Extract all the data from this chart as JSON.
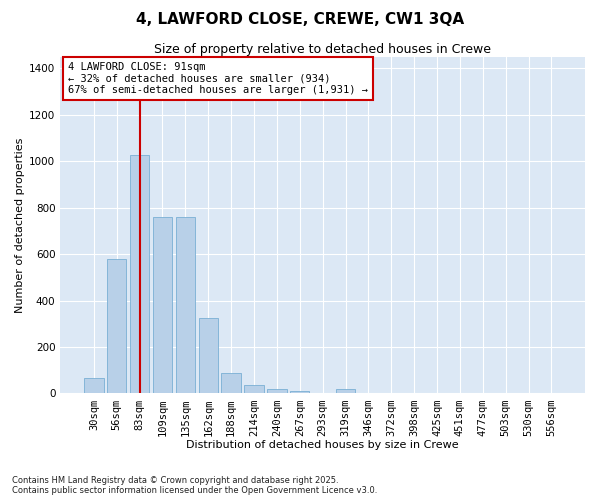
{
  "title": "4, LAWFORD CLOSE, CREWE, CW1 3QA",
  "subtitle": "Size of property relative to detached houses in Crewe",
  "xlabel": "Distribution of detached houses by size in Crewe",
  "ylabel": "Number of detached properties",
  "categories": [
    "30sqm",
    "56sqm",
    "83sqm",
    "109sqm",
    "135sqm",
    "162sqm",
    "188sqm",
    "214sqm",
    "240sqm",
    "267sqm",
    "293sqm",
    "319sqm",
    "346sqm",
    "372sqm",
    "398sqm",
    "425sqm",
    "451sqm",
    "477sqm",
    "503sqm",
    "530sqm",
    "556sqm"
  ],
  "values": [
    65,
    580,
    1025,
    760,
    760,
    325,
    90,
    35,
    20,
    12,
    0,
    18,
    0,
    0,
    0,
    0,
    0,
    0,
    0,
    0,
    0
  ],
  "bar_color": "#b8d0e8",
  "bar_edge_color": "#7aafd4",
  "red_line_index": 2,
  "annotation_text": "4 LAWFORD CLOSE: 91sqm\n← 32% of detached houses are smaller (934)\n67% of semi-detached houses are larger (1,931) →",
  "annotation_box_color": "#ffffff",
  "annotation_box_edge_color": "#cc0000",
  "red_line_color": "#cc0000",
  "ylim": [
    0,
    1450
  ],
  "yticks": [
    0,
    200,
    400,
    600,
    800,
    1000,
    1200,
    1400
  ],
  "background_color": "#dce8f5",
  "figure_bg_color": "#ffffff",
  "grid_color": "#ffffff",
  "footnote": "Contains HM Land Registry data © Crown copyright and database right 2025.\nContains public sector information licensed under the Open Government Licence v3.0.",
  "title_fontsize": 11,
  "subtitle_fontsize": 9,
  "xlabel_fontsize": 8,
  "ylabel_fontsize": 8,
  "tick_fontsize": 7.5,
  "annot_fontsize": 7.5,
  "footnote_fontsize": 6
}
